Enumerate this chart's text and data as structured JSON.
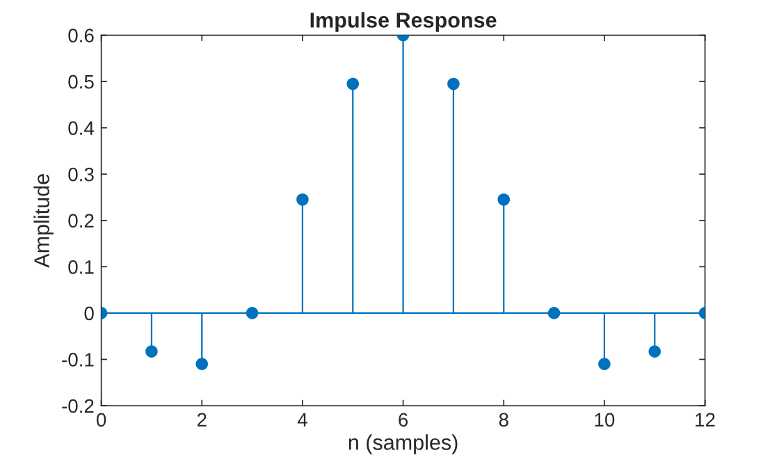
{
  "chart_data": {
    "type": "lollipop",
    "title": "Impulse Response",
    "xlabel": "n (samples)",
    "ylabel": "Amplitude",
    "x": [
      0,
      1,
      2,
      3,
      4,
      5,
      6,
      7,
      8,
      9,
      10,
      11,
      12
    ],
    "series": [
      {
        "color": "#0072bd",
        "values": [
          0,
          -0.083,
          -0.11,
          0,
          0.245,
          0.495,
          0.6,
          0.495,
          0.245,
          0,
          -0.11,
          -0.083,
          0
        ]
      }
    ],
    "xlim": [
      0,
      12
    ],
    "xticks": [
      0,
      2,
      4,
      6,
      8,
      10,
      12
    ],
    "ylim": [
      -0.2,
      0.6
    ],
    "yticks": [
      -0.2,
      -0.1,
      0,
      0.1,
      0.2,
      0.3,
      0.4,
      0.5,
      0.6
    ],
    "legend": false,
    "marker": "circle",
    "line_style": "solid"
  }
}
